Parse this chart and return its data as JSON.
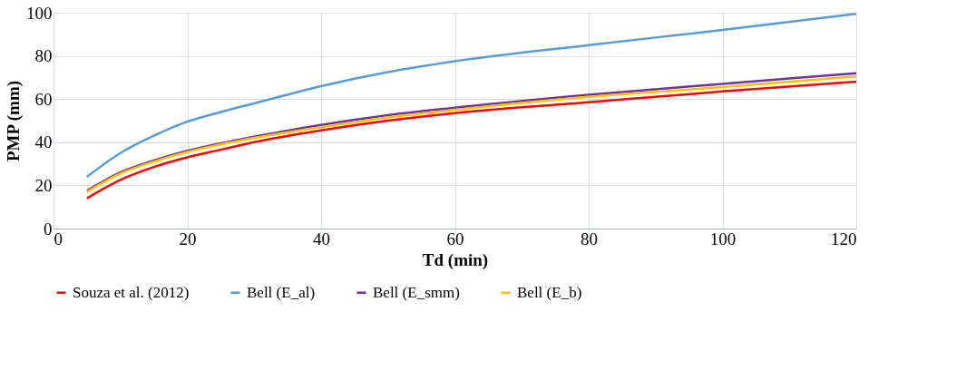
{
  "chart_data": {
    "type": "line",
    "xlabel": "Td (min)",
    "ylabel": "PMP (mm)",
    "x": [
      5,
      10,
      15,
      20,
      25,
      30,
      40,
      50,
      60,
      80,
      100,
      120
    ],
    "series": [
      {
        "name": "Souza et al. (2012)",
        "color": "#ff0000",
        "values": [
          14,
          22.5,
          28.5,
          33,
          36.5,
          40,
          45.5,
          50,
          53.5,
          58.5,
          63.5,
          68
        ]
      },
      {
        "name": "Bell (E_al)",
        "color": "#5b9bd5",
        "values": [
          24,
          35,
          43,
          49.5,
          54,
          58,
          66,
          72.5,
          77.5,
          85,
          92,
          99.5
        ]
      },
      {
        "name": "Bell (E_smm)",
        "color": "#7030a0",
        "values": [
          17.5,
          26,
          31.5,
          36,
          39.5,
          42.5,
          48,
          52.5,
          56,
          62,
          67,
          72
        ]
      },
      {
        "name": "Bell (E_b)",
        "color": "#ffc000",
        "values": [
          17,
          25.5,
          31,
          35.5,
          39,
          42,
          47,
          51.5,
          55,
          61,
          65.5,
          70.5
        ]
      }
    ],
    "xlim": [
      0,
      120
    ],
    "xticks": [
      0,
      20,
      40,
      60,
      80,
      100,
      120
    ],
    "ylim": [
      0,
      100
    ],
    "yticks": [
      0,
      20,
      40,
      60,
      80,
      100
    ],
    "grid": true,
    "legend": "bottom",
    "marker": "none",
    "line_style": "solid"
  }
}
